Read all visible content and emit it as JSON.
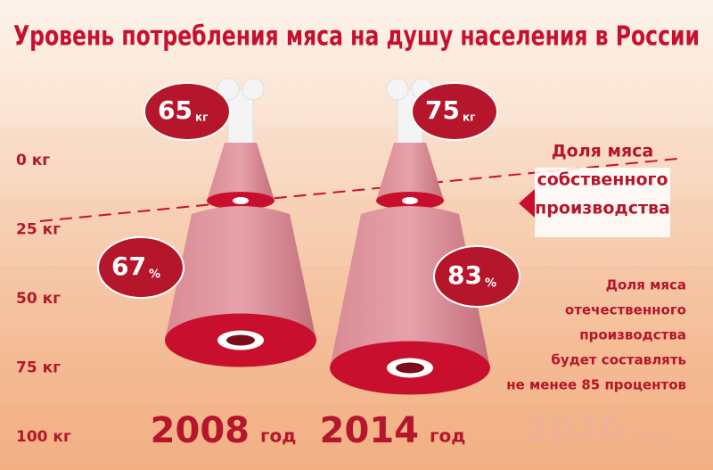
{
  "chart_data": {
    "type": "ham",
    "title": "Уровень потребления мяса на душу населения в России",
    "ylim": [
      0,
      100
    ],
    "yticks": [
      {
        "value": 0,
        "label": "0 кг"
      },
      {
        "value": 25,
        "label": "25 кг"
      },
      {
        "value": 50,
        "label": "50 кг"
      },
      {
        "value": 75,
        "label": "75 кг"
      },
      {
        "value": 100,
        "label": "100 кг"
      }
    ],
    "categories": [
      "2008",
      "2014",
      "2020"
    ],
    "category_suffix": "год",
    "consumption": {
      "values": [
        65,
        75
      ],
      "unit": "кг",
      "color": "#b5162b"
    },
    "share": {
      "values": [
        67,
        83
      ],
      "unit": "%",
      "color": "#b5162b"
    },
    "annotations": {
      "own_share": [
        "Доля мяса",
        "собственного",
        "производства"
      ],
      "forecast": [
        "Доля мяса",
        "отечественного",
        "производства",
        "будет составлять",
        "не менее 85 процентов"
      ]
    }
  }
}
